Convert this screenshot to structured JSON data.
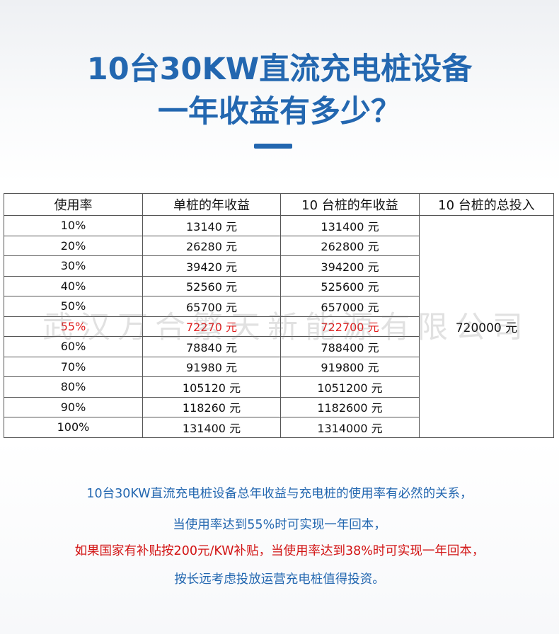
{
  "title": {
    "line1": "10台30KW直流充电桩设备",
    "line2": "一年收益有多少？"
  },
  "table": {
    "headers": [
      "使用率",
      "单桩的年收益",
      "10 台桩的年收益",
      "10 台桩的总投入"
    ],
    "rows": [
      [
        "10%",
        "13140 元",
        "131400 元"
      ],
      [
        "20%",
        "26280 元",
        "262800 元"
      ],
      [
        "30%",
        "39420 元",
        "394200 元"
      ],
      [
        "40%",
        "52560 元",
        "525600 元"
      ],
      [
        "50%",
        "65700 元",
        "657000 元"
      ],
      [
        "55%",
        "72270 元",
        "722700 元"
      ],
      [
        "60%",
        "78840 元",
        "788400 元"
      ],
      [
        "70%",
        "91980 元",
        "919800 元"
      ],
      [
        "80%",
        "105120 元",
        "1051200 元"
      ],
      [
        "90%",
        "118260 元",
        "1182600 元"
      ],
      [
        "100%",
        "131400 元",
        "1314000 元"
      ]
    ],
    "total_investment": "720000 元",
    "highlight_row": 5
  },
  "watermark": "武汉万合繁天新能源有限公司",
  "notes": [
    "10台30KW直流充电桩设备总年收益与充电桩的使用率有必然的关系，",
    "当使用率达到55%时可实现一年回本，",
    "如果国家有补贴按200元/KW补贴，当使用率达到38%时可实现一年回本，",
    "按长远考虑投放运营充电桩值得投资。"
  ],
  "colors": {
    "title_blue": "#2367b0",
    "highlight_red": "#e02020",
    "note_red": "#d21414"
  }
}
